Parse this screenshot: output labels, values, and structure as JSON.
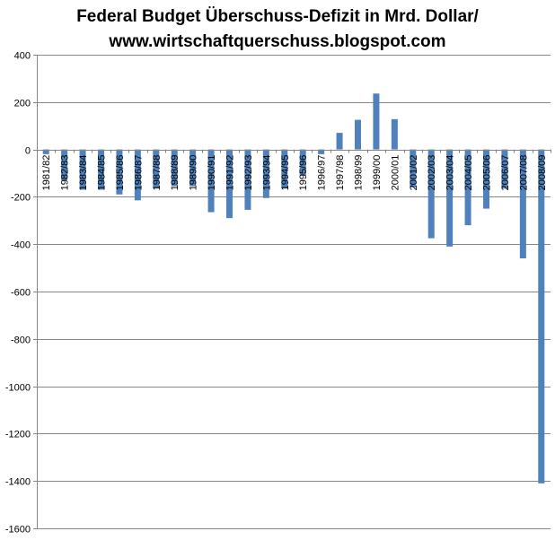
{
  "chart_data": {
    "type": "bar",
    "title_lines": [
      "Federal Budget Überschuss-Defizit in Mrd. Dollar/",
      "www.wirtschaftquerschuss.blogspot.com"
    ],
    "xlabel": "",
    "ylabel": "",
    "categories": [
      "1981/82",
      "1982/83",
      "1983/84",
      "1984/85",
      "1985/86",
      "1986/87",
      "1987/88",
      "1988/89",
      "1989/90",
      "1990/91",
      "1991/92",
      "1992/93",
      "1993/94",
      "1994/95",
      "1995/96",
      "1996/97",
      "1997/98",
      "1998/99",
      "1999/00",
      "2000/01",
      "2001/02",
      "2002/03",
      "2003/04",
      "2004/05",
      "2005/06",
      "2006/07",
      "2007/08",
      "2008/09"
    ],
    "series": [
      {
        "name": "Überschuss-Defizit",
        "color": "#4f81bd",
        "values": [
          -20,
          -130,
          -170,
          -170,
          -190,
          -215,
          -165,
          -155,
          -155,
          -265,
          -290,
          -255,
          -205,
          -165,
          -110,
          -20,
          70,
          125,
          236,
          128,
          -160,
          -375,
          -410,
          -320,
          -250,
          -165,
          -460,
          -1410
        ]
      }
    ],
    "ylim": [
      -1600,
      400
    ],
    "yticks": [
      "400",
      "200",
      "0",
      "-200",
      "-400",
      "-600",
      "-800",
      "-1000",
      "-1200",
      "-1400",
      "-1600"
    ],
    "ytick_values": [
      400,
      200,
      0,
      -200,
      -400,
      -600,
      -800,
      -1000,
      -1200,
      -1400,
      -1600
    ],
    "grid": true,
    "legend": "none",
    "colors": {
      "bar": "#4f81bd",
      "grid": "#868686",
      "axis": "#868686",
      "text": "#000000"
    }
  }
}
